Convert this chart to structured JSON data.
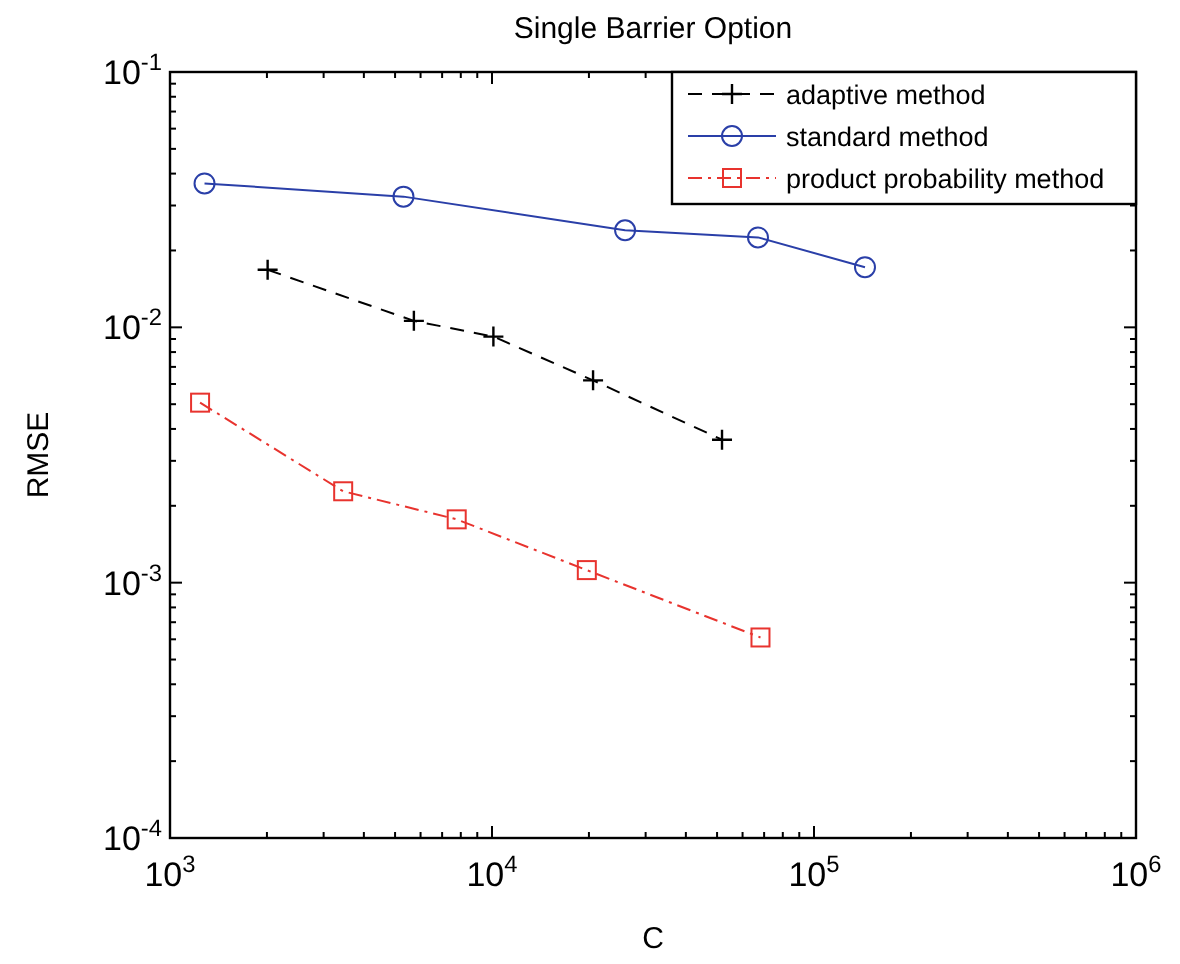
{
  "chart_data": {
    "type": "line",
    "title": "Single Barrier Option",
    "xlabel": "C",
    "ylabel": "RMSE",
    "log": "xy",
    "grid": false,
    "legend": "top right",
    "xlim": [
      1000,
      1000000
    ],
    "ylim": [
      0.0001,
      0.1
    ],
    "xticks": [
      {
        "value": 1000,
        "label": "10$^{3}$"
      },
      {
        "value": 2000,
        "label": null
      },
      {
        "value": 3000,
        "label": null
      },
      {
        "value": 4000,
        "label": null
      },
      {
        "value": 5000,
        "label": null
      },
      {
        "value": 6000,
        "label": null
      },
      {
        "value": 7000,
        "label": null
      },
      {
        "value": 8000,
        "label": null
      },
      {
        "value": 9000,
        "label": null
      },
      {
        "value": 10000,
        "label": "10$^{4}$"
      },
      {
        "value": 20000,
        "label": null
      },
      {
        "value": 30000,
        "label": null
      },
      {
        "value": 40000,
        "label": null
      },
      {
        "value": 50000,
        "label": null
      },
      {
        "value": 60000,
        "label": null
      },
      {
        "value": 70000,
        "label": null
      },
      {
        "value": 80000,
        "label": null
      },
      {
        "value": 90000,
        "label": null
      },
      {
        "value": 100000,
        "label": "10$^{5}$"
      },
      {
        "value": 200000,
        "label": null
      },
      {
        "value": 300000,
        "label": null
      },
      {
        "value": 400000,
        "label": null
      },
      {
        "value": 500000,
        "label": null
      },
      {
        "value": 600000,
        "label": null
      },
      {
        "value": 700000,
        "label": null
      },
      {
        "value": 800000,
        "label": null
      },
      {
        "value": 900000,
        "label": null
      },
      {
        "value": 1000000,
        "label": "10$^{6}$"
      }
    ],
    "yticks": [
      {
        "value": 0.0001,
        "label": "10$^{-4}$"
      },
      {
        "value": 0.0002,
        "label": null
      },
      {
        "value": 0.0003,
        "label": null
      },
      {
        "value": 0.0004,
        "label": null
      },
      {
        "value": 0.0005,
        "label": null
      },
      {
        "value": 0.0006,
        "label": null
      },
      {
        "value": 0.0007,
        "label": null
      },
      {
        "value": 0.0008,
        "label": null
      },
      {
        "value": 0.0009,
        "label": null
      },
      {
        "value": 0.001,
        "label": "10$^{-3}$"
      },
      {
        "value": 0.002,
        "label": null
      },
      {
        "value": 0.003,
        "label": null
      },
      {
        "value": 0.004,
        "label": null
      },
      {
        "value": 0.005,
        "label": null
      },
      {
        "value": 0.006,
        "label": null
      },
      {
        "value": 0.007,
        "label": null
      },
      {
        "value": 0.008,
        "label": null
      },
      {
        "value": 0.009,
        "label": null
      },
      {
        "value": 0.01,
        "label": "10$^{-2}$"
      },
      {
        "value": 0.02,
        "label": null
      },
      {
        "value": 0.03,
        "label": null
      },
      {
        "value": 0.04,
        "label": null
      },
      {
        "value": 0.05,
        "label": null
      },
      {
        "value": 0.06,
        "label": null
      },
      {
        "value": 0.07,
        "label": null
      },
      {
        "value": 0.08,
        "label": null
      },
      {
        "value": 0.09,
        "label": null
      },
      {
        "value": 0.1,
        "label": "10$^{-1}$"
      }
    ],
    "series": [
      {
        "name": "adaptive method",
        "color": "#000000",
        "marker": "cross",
        "line_style": "dashed",
        "x": [
          2010,
          5720,
          10100,
          20600,
          51800
        ],
        "values": [
          0.0168,
          0.0106,
          0.0092,
          0.0062,
          0.00363
        ]
      },
      {
        "name": "standard method",
        "color": "#2a3fa8",
        "marker": "circle",
        "line_style": "solid",
        "x": [
          1280,
          5310,
          25900,
          67000,
          144000
        ],
        "values": [
          0.0366,
          0.0325,
          0.024,
          0.0225,
          0.0172
        ]
      },
      {
        "name": "product probability method",
        "color": "#e8332e",
        "marker": "square",
        "line_style": "dashdot",
        "x": [
          1240,
          3450,
          7770,
          19700,
          68200
        ],
        "values": [
          0.00507,
          0.00228,
          0.00177,
          0.00112,
          0.00061
        ]
      }
    ]
  }
}
